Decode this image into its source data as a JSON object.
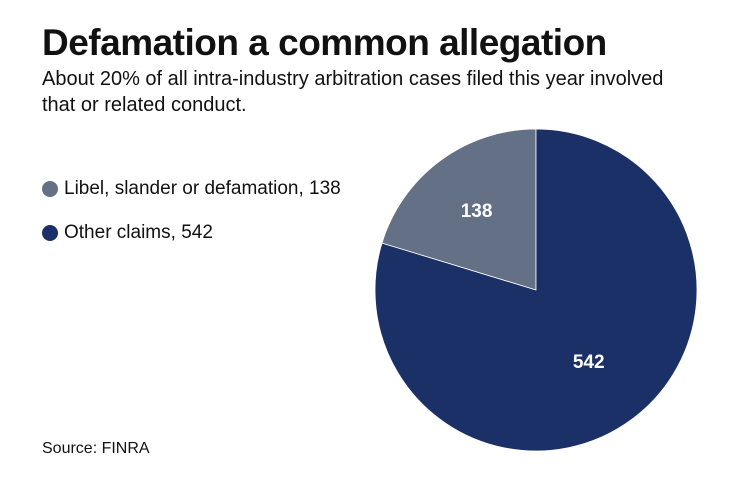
{
  "chart_data": {
    "type": "pie",
    "title": "Defamation a common allegation",
    "subtitle": "About 20% of all intra-industry arbitration cases filed this year involved that or related conduct.",
    "source": "Source: FINRA",
    "legend_placement": "left",
    "slices": [
      {
        "name": "Libel, slander or defamation",
        "value": 138,
        "label": "138",
        "legend": "Libel, slander or defamation, 138",
        "color": "#637085"
      },
      {
        "name": "Other claims",
        "value": 542,
        "label": "542",
        "legend": "Other claims, 542",
        "color": "#1a3066"
      }
    ]
  }
}
